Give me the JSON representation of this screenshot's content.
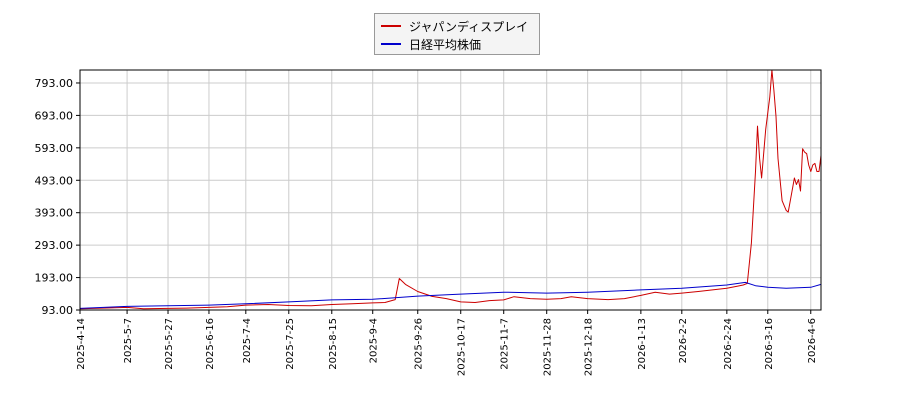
{
  "chart_data": {
    "type": "line",
    "ylim": [
      93,
      833
    ],
    "yticks": [
      93,
      193,
      293,
      393,
      493,
      593,
      693,
      793
    ],
    "ytick_labels": [
      "93.00",
      "193.00",
      "293.00",
      "393.00",
      "493.00",
      "593.00",
      "693.00",
      "793.00"
    ],
    "x_range": [
      "2025-04-14",
      "2026-04-11"
    ],
    "xticks": [
      "2025-4-14",
      "2025-5-7",
      "2025-5-27",
      "2025-6-16",
      "2025-7-4",
      "2025-7-25",
      "2025-8-15",
      "2025-9-4",
      "2025-9-26",
      "2025-10-17",
      "2025-11-7",
      "2025-11-28",
      "2025-12-18",
      "2026-1-13",
      "2026-2-2",
      "2026-2-24",
      "2026-3-16",
      "2026-4-6"
    ],
    "grid": true,
    "legend_position": "top-center",
    "series": [
      {
        "name": "ジャパンディスプレイ",
        "color": "#cc0000",
        "points": [
          [
            "2025-04-14",
            97
          ],
          [
            "2025-04-25",
            99
          ],
          [
            "2025-05-07",
            101
          ],
          [
            "2025-05-15",
            97
          ],
          [
            "2025-05-27",
            98
          ],
          [
            "2025-06-05",
            99
          ],
          [
            "2025-06-16",
            101
          ],
          [
            "2025-06-25",
            103
          ],
          [
            "2025-07-04",
            108
          ],
          [
            "2025-07-15",
            110
          ],
          [
            "2025-07-25",
            107
          ],
          [
            "2025-08-05",
            106
          ],
          [
            "2025-08-15",
            110
          ],
          [
            "2025-08-25",
            112
          ],
          [
            "2025-09-04",
            115
          ],
          [
            "2025-09-10",
            116
          ],
          [
            "2025-09-15",
            125
          ],
          [
            "2025-09-17",
            190
          ],
          [
            "2025-09-20",
            172
          ],
          [
            "2025-09-26",
            150
          ],
          [
            "2025-10-03",
            135
          ],
          [
            "2025-10-10",
            128
          ],
          [
            "2025-10-17",
            118
          ],
          [
            "2025-10-24",
            116
          ],
          [
            "2025-10-31",
            122
          ],
          [
            "2025-11-07",
            124
          ],
          [
            "2025-11-12",
            134
          ],
          [
            "2025-11-20",
            128
          ],
          [
            "2025-11-28",
            126
          ],
          [
            "2025-12-05",
            128
          ],
          [
            "2025-12-10",
            134
          ],
          [
            "2025-12-18",
            128
          ],
          [
            "2025-12-28",
            125
          ],
          [
            "2026-01-05",
            128
          ],
          [
            "2026-01-13",
            138
          ],
          [
            "2026-01-20",
            148
          ],
          [
            "2026-01-27",
            142
          ],
          [
            "2026-02-02",
            145
          ],
          [
            "2026-02-10",
            150
          ],
          [
            "2026-02-17",
            155
          ],
          [
            "2026-02-24",
            160
          ],
          [
            "2026-03-01",
            166
          ],
          [
            "2026-03-04",
            170
          ],
          [
            "2026-03-06",
            175
          ],
          [
            "2026-03-08",
            300
          ],
          [
            "2026-03-10",
            520
          ],
          [
            "2026-03-11",
            660
          ],
          [
            "2026-03-12",
            560
          ],
          [
            "2026-03-13",
            500
          ],
          [
            "2026-03-15",
            650
          ],
          [
            "2026-03-17",
            750
          ],
          [
            "2026-03-18",
            833
          ],
          [
            "2026-03-19",
            770
          ],
          [
            "2026-03-20",
            690
          ],
          [
            "2026-03-21",
            560
          ],
          [
            "2026-03-23",
            430
          ],
          [
            "2026-03-25",
            400
          ],
          [
            "2026-03-26",
            395
          ],
          [
            "2026-03-27",
            430
          ],
          [
            "2026-03-29",
            500
          ],
          [
            "2026-03-30",
            480
          ],
          [
            "2026-03-31",
            495
          ],
          [
            "2026-04-01",
            460
          ],
          [
            "2026-04-02",
            590
          ],
          [
            "2026-04-03",
            580
          ],
          [
            "2026-04-04",
            575
          ],
          [
            "2026-04-05",
            540
          ],
          [
            "2026-04-06",
            520
          ],
          [
            "2026-04-07",
            540
          ],
          [
            "2026-04-08",
            545
          ],
          [
            "2026-04-09",
            520
          ],
          [
            "2026-04-10",
            520
          ],
          [
            "2026-04-11",
            570
          ]
        ]
      },
      {
        "name": "日経平均株価",
        "color": "#0000cc",
        "points": [
          [
            "2025-04-14",
            98
          ],
          [
            "2025-05-07",
            104
          ],
          [
            "2025-05-27",
            106
          ],
          [
            "2025-06-16",
            108
          ],
          [
            "2025-07-04",
            112
          ],
          [
            "2025-07-25",
            118
          ],
          [
            "2025-08-15",
            124
          ],
          [
            "2025-09-04",
            126
          ],
          [
            "2025-09-26",
            136
          ],
          [
            "2025-10-17",
            142
          ],
          [
            "2025-11-07",
            148
          ],
          [
            "2025-11-28",
            145
          ],
          [
            "2025-12-18",
            148
          ],
          [
            "2026-01-13",
            155
          ],
          [
            "2026-02-02",
            160
          ],
          [
            "2026-02-24",
            170
          ],
          [
            "2026-03-05",
            178
          ],
          [
            "2026-03-10",
            168
          ],
          [
            "2026-03-16",
            163
          ],
          [
            "2026-03-25",
            160
          ],
          [
            "2026-04-06",
            163
          ],
          [
            "2026-04-11",
            172
          ]
        ]
      }
    ]
  }
}
